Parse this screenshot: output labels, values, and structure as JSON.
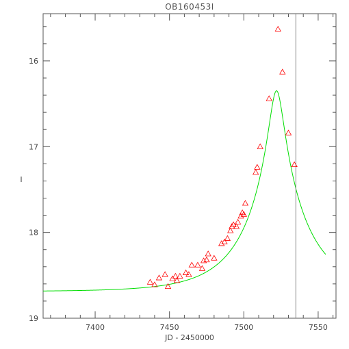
{
  "chart_data": {
    "type": "scatter",
    "title": "OB160453I",
    "xlabel": "JD - 2450000",
    "ylabel": "I",
    "xlim": [
      7365,
      7562
    ],
    "ylim": [
      19.0,
      15.45
    ],
    "y_inverted": true,
    "x_ticks": [
      7400,
      7450,
      7500,
      7550
    ],
    "y_ticks": [
      16,
      17,
      18,
      19
    ],
    "grid": false,
    "colors": {
      "points": "#ff0000",
      "model": "#00dd00",
      "marker_line": "#888888",
      "axes": "#555555",
      "text": "#444444"
    },
    "vertical_marker_x": 7535,
    "series": [
      {
        "kind": "observations",
        "marker": "triangle",
        "points": [
          [
            7437,
            18.58
          ],
          [
            7440,
            18.61
          ],
          [
            7443,
            18.53
          ],
          [
            7447,
            18.49
          ],
          [
            7449,
            18.63
          ],
          [
            7452,
            18.54
          ],
          [
            7454,
            18.51
          ],
          [
            7455,
            18.56
          ],
          [
            7457,
            18.51
          ],
          [
            7461,
            18.47
          ],
          [
            7463,
            18.49
          ],
          [
            7465,
            18.38
          ],
          [
            7469,
            18.38
          ],
          [
            7472,
            18.42
          ],
          [
            7473,
            18.33
          ],
          [
            7475,
            18.32
          ],
          [
            7476,
            18.25
          ],
          [
            7480,
            18.3
          ],
          [
            7485,
            18.13
          ],
          [
            7487,
            18.11
          ],
          [
            7489,
            18.07
          ],
          [
            7491,
            17.98
          ],
          [
            7492,
            17.93
          ],
          [
            7493,
            17.91
          ],
          [
            7495,
            17.93
          ],
          [
            7496,
            17.88
          ],
          [
            7498,
            17.81
          ],
          [
            7499,
            17.77
          ],
          [
            7500,
            17.79
          ],
          [
            7501,
            17.66
          ],
          [
            7508,
            17.3
          ],
          [
            7509,
            17.24
          ],
          [
            7511,
            17.0
          ],
          [
            7517,
            16.44
          ],
          [
            7523,
            15.63
          ],
          [
            7526,
            16.13
          ],
          [
            7530,
            16.84
          ],
          [
            7534,
            17.21
          ]
        ]
      },
      {
        "kind": "model",
        "u0": 0.1163,
        "t0": 7522,
        "tE": 40,
        "baseline_mag": 18.69
      }
    ]
  }
}
